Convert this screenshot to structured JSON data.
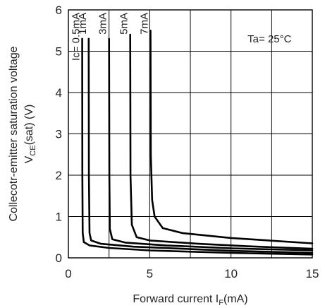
{
  "chart_data": {
    "type": "line",
    "xlabel_parts": [
      "Forward current I",
      "F",
      "(mA)"
    ],
    "ylabel_line1": "Collecotr-emitter saturation voltage",
    "ylabel_line2_parts": [
      "V",
      "CE",
      "(sat) (V)"
    ],
    "annotation": "Ta= 25°C",
    "xlim": [
      0,
      15
    ],
    "ylim": [
      0,
      6
    ],
    "x_ticks": [
      "0",
      "5",
      "10",
      "15"
    ],
    "y_ticks": [
      "0",
      "1",
      "2",
      "3",
      "4",
      "5",
      "6"
    ],
    "grid": true,
    "series": [
      {
        "name": "Ic= 0.5mA",
        "points": [
          [
            0.85,
            5.3
          ],
          [
            0.86,
            2.0
          ],
          [
            0.88,
            0.6
          ],
          [
            0.95,
            0.38
          ],
          [
            1.3,
            0.3
          ],
          [
            2.5,
            0.24
          ],
          [
            5,
            0.18
          ],
          [
            10,
            0.12
          ],
          [
            15,
            0.08
          ]
        ]
      },
      {
        "name": "1mA",
        "points": [
          [
            1.25,
            5.3
          ],
          [
            1.26,
            2.0
          ],
          [
            1.3,
            0.6
          ],
          [
            1.4,
            0.42
          ],
          [
            2,
            0.34
          ],
          [
            4,
            0.27
          ],
          [
            7,
            0.22
          ],
          [
            10,
            0.17
          ],
          [
            15,
            0.12
          ]
        ]
      },
      {
        "name": "3mA",
        "points": [
          [
            2.5,
            5.3
          ],
          [
            2.52,
            2.0
          ],
          [
            2.55,
            0.7
          ],
          [
            2.7,
            0.45
          ],
          [
            3.5,
            0.37
          ],
          [
            6,
            0.3
          ],
          [
            10,
            0.23
          ],
          [
            15,
            0.18
          ]
        ]
      },
      {
        "name": "5mA",
        "points": [
          [
            3.8,
            5.4
          ],
          [
            3.82,
            2.0
          ],
          [
            3.9,
            0.8
          ],
          [
            4.2,
            0.5
          ],
          [
            5,
            0.42
          ],
          [
            8,
            0.34
          ],
          [
            11,
            0.28
          ],
          [
            15,
            0.22
          ]
        ]
      },
      {
        "name": "7mA",
        "points": [
          [
            5.05,
            5.5
          ],
          [
            5.07,
            2.5
          ],
          [
            5.15,
            1.4
          ],
          [
            5.3,
            1.0
          ],
          [
            5.8,
            0.72
          ],
          [
            7,
            0.6
          ],
          [
            10,
            0.48
          ],
          [
            15,
            0.35
          ]
        ]
      }
    ]
  }
}
